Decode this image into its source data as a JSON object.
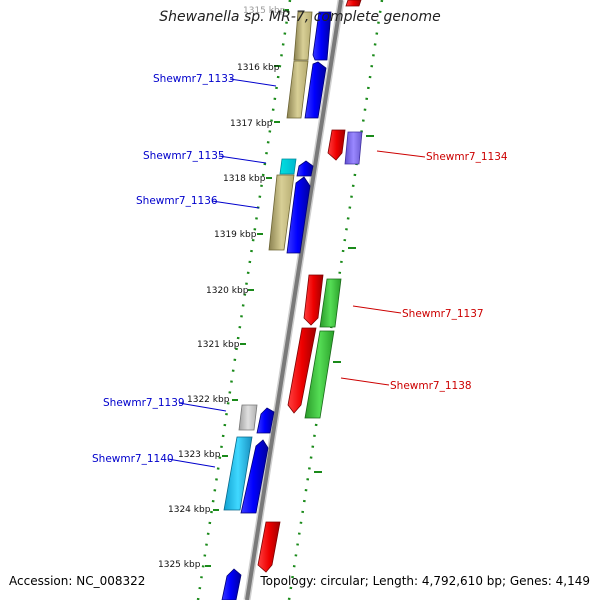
{
  "header": {
    "title": "Shewanella sp. MR-7, complete genome"
  },
  "footer": {
    "accession": "Accession: NC_008322",
    "summary": "Topology: circular; Length: 4,792,610 bp; Genes: 4,149"
  },
  "scale": {
    "ticks": [
      "1315 kbp",
      "1316 kbp",
      "1317 kbp",
      "1318 kbp",
      "1319 kbp",
      "1320 kbp",
      "1321 kbp",
      "1322 kbp",
      "1323 kbp",
      "1324 kbp",
      "1325 kbp"
    ]
  },
  "colors": {
    "left_label": "#0000cc",
    "right_label": "#cc0000",
    "backbone": "#808080",
    "dots": "#1a8a1a"
  },
  "genes": [
    {
      "name": "Shewmr7_1133",
      "strand": "minus",
      "labeled": true
    },
    {
      "name": "Shewmr7_1134",
      "strand": "plus",
      "labeled": true
    },
    {
      "name": "Shewmr7_1135",
      "strand": "minus",
      "labeled": true
    },
    {
      "name": "Shewmr7_1136",
      "strand": "minus",
      "labeled": true
    },
    {
      "name": "Shewmr7_1137",
      "strand": "plus",
      "labeled": true
    },
    {
      "name": "Shewmr7_1138",
      "strand": "plus",
      "labeled": true
    },
    {
      "name": "Shewmr7_1139",
      "strand": "minus",
      "labeled": true
    },
    {
      "name": "Shewmr7_1140",
      "strand": "minus",
      "labeled": true
    }
  ]
}
